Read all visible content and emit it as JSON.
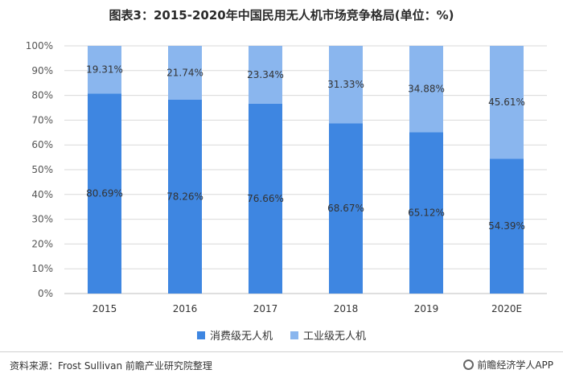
{
  "chart_data": {
    "type": "bar",
    "stacked": true,
    "title": "图表3：2015-2020年中国民用无人机市场竞争格局(单位：%)",
    "categories": [
      "2015",
      "2016",
      "2017",
      "2018",
      "2019",
      "2020E"
    ],
    "series": [
      {
        "name": "消费级无人机",
        "values": [
          80.69,
          78.26,
          76.66,
          68.67,
          65.12,
          54.39
        ],
        "labels": [
          "80.69%",
          "78.26%",
          "76.66%",
          "68.67%",
          "65.12%",
          "54.39%"
        ],
        "color": "#3e86e1"
      },
      {
        "name": "工业级无人机",
        "values": [
          19.31,
          21.74,
          23.34,
          31.33,
          34.88,
          45.61
        ],
        "labels": [
          "19.31%",
          "21.74%",
          "23.34%",
          "31.33%",
          "34.88%",
          "45.61%"
        ],
        "color": "#8ab6ee"
      }
    ],
    "yticks": [
      "0%",
      "10%",
      "20%",
      "30%",
      "40%",
      "50%",
      "60%",
      "70%",
      "80%",
      "90%",
      "100%"
    ],
    "ylim": [
      0,
      100
    ],
    "grid": true,
    "legend_position": "bottom"
  },
  "footer": {
    "source": "资料来源：Frost Sullivan 前瞻产业研究院整理",
    "brand": "前瞻经济学人APP"
  }
}
